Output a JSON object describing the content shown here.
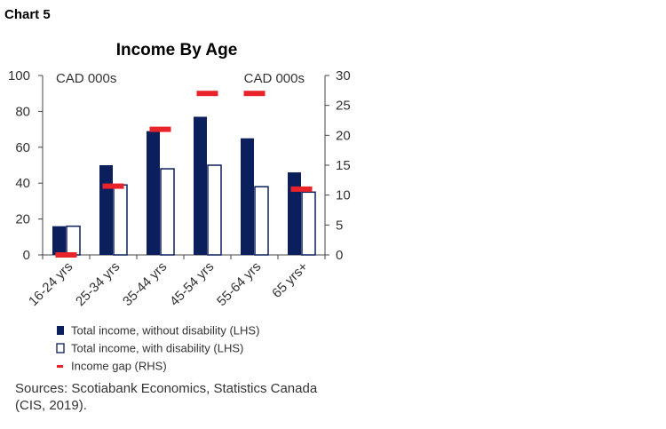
{
  "chart_label": "Chart 5",
  "chart_data": {
    "type": "bar",
    "title": "Income By Age",
    "left_unit": "CAD 000s",
    "right_unit": "CAD 000s",
    "categories": [
      "16-24 yrs",
      "25-34 yrs",
      "35-44 yrs",
      "45-54 yrs",
      "55-64 yrs",
      "65 yrs+"
    ],
    "series": [
      {
        "name": "Total income, without disability (LHS)",
        "axis": "left",
        "kind": "bar",
        "color": "#0a1f5c",
        "values": [
          16,
          50,
          69,
          77,
          65,
          46
        ]
      },
      {
        "name": "Total income, with disability (LHS)",
        "axis": "left",
        "kind": "bar",
        "color": "#ffffff",
        "stroke": "#0a1f5c",
        "values": [
          16,
          39,
          48,
          50,
          38,
          35
        ]
      },
      {
        "name": "Income gap (RHS)",
        "axis": "right",
        "kind": "marker",
        "color": "#e8232a",
        "values": [
          0,
          11.5,
          21,
          27,
          27,
          11
        ]
      }
    ],
    "y_left": {
      "min": 0,
      "max": 100,
      "ticks": [
        0,
        20,
        40,
        60,
        80,
        100
      ]
    },
    "y_right": {
      "min": 0,
      "max": 30,
      "ticks": [
        0,
        5,
        10,
        15,
        20,
        25,
        30
      ]
    },
    "grid": false,
    "legend_placement": "bottom"
  },
  "source_note_line1": "Sources: Scotiabank Economics, Statistics Canada",
  "source_note_line2": "(CIS, 2019)."
}
